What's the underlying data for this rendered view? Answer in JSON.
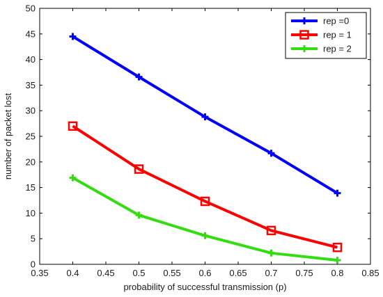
{
  "chart_data": {
    "type": "line",
    "title": "",
    "xlabel": "probability of successful transmission (p)",
    "ylabel": "number of packet lost",
    "xlim": [
      0.35,
      0.85
    ],
    "ylim": [
      0,
      50
    ],
    "xticks": [
      0.35,
      0.4,
      0.45,
      0.5,
      0.55,
      0.6,
      0.65,
      0.7,
      0.75,
      0.8,
      0.85
    ],
    "xtick_labels": [
      "0.35",
      "0.4",
      "0.45",
      "0.5",
      "0.55",
      "0.6",
      "0.65",
      "0.7",
      "0.75",
      "0.8",
      "0.85"
    ],
    "yticks": [
      0,
      5,
      10,
      15,
      20,
      25,
      30,
      35,
      40,
      45,
      50
    ],
    "ytick_labels": [
      "0",
      "5",
      "10",
      "15",
      "20",
      "25",
      "30",
      "35",
      "40",
      "45",
      "50"
    ],
    "grid": false,
    "legend_position": "top-right",
    "x": [
      0.4,
      0.5,
      0.6,
      0.7,
      0.8
    ],
    "series": [
      {
        "name": "rep =0",
        "values": [
          44.5,
          36.6,
          28.8,
          21.7,
          13.9
        ],
        "color": "#0000ff",
        "marker": "plus"
      },
      {
        "name": "rep = 1",
        "values": [
          27.0,
          18.6,
          12.3,
          6.6,
          3.3
        ],
        "color": "#ff0000",
        "marker": "square"
      },
      {
        "name": "rep = 2",
        "values": [
          16.9,
          9.6,
          5.6,
          2.2,
          0.8
        ],
        "color": "#33dd11",
        "marker": "plus"
      }
    ]
  }
}
